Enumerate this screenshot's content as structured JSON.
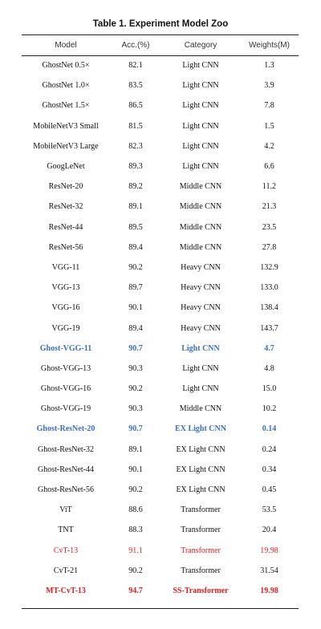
{
  "title": "Table 1. Experiment Model Zoo",
  "headers": [
    "Model",
    "Acc.(%)",
    "Category",
    "Weights(M)"
  ],
  "rows": [
    {
      "model": "GhostNet 0.5×",
      "acc": "82.1",
      "category": "Light CNN",
      "weights": "1.3",
      "style": ""
    },
    {
      "model": "GhostNet 1.0×",
      "acc": "83.5",
      "category": "Light CNN",
      "weights": "3.9",
      "style": ""
    },
    {
      "model": "GhostNet 1.5×",
      "acc": "86.5",
      "category": "Light CNN",
      "weights": "7.8",
      "style": ""
    },
    {
      "model": "MobileNetV3 Small",
      "acc": "81.5",
      "category": "Light CNN",
      "weights": "1.5",
      "style": ""
    },
    {
      "model": "MobileNetV3 Large",
      "acc": "82.3",
      "category": "Light CNN",
      "weights": "4.2",
      "style": ""
    },
    {
      "model": "GoogLeNet",
      "acc": "89.3",
      "category": "Light CNN",
      "weights": "6.6",
      "style": ""
    },
    {
      "model": "ResNet-20",
      "acc": "89.2",
      "category": "Middle CNN",
      "weights": "11.2",
      "style": ""
    },
    {
      "model": "ResNet-32",
      "acc": "89.1",
      "category": "Middle CNN",
      "weights": "21.3",
      "style": ""
    },
    {
      "model": "ResNet-44",
      "acc": "89.5",
      "category": "Middle CNN",
      "weights": "23.5",
      "style": ""
    },
    {
      "model": "ResNet-56",
      "acc": "89.4",
      "category": "Middle CNN",
      "weights": "27.8",
      "style": ""
    },
    {
      "model": "VGG-11",
      "acc": "90.2",
      "category": "Heavy CNN",
      "weights": "132.9",
      "style": ""
    },
    {
      "model": "VGG-13",
      "acc": "89.7",
      "category": "Heavy CNN",
      "weights": "133.0",
      "style": ""
    },
    {
      "model": "VGG-16",
      "acc": "90.1",
      "category": "Heavy CNN",
      "weights": "138.4",
      "style": ""
    },
    {
      "model": "VGG-19",
      "acc": "89.4",
      "category": "Heavy CNN",
      "weights": "143.7",
      "style": ""
    },
    {
      "model": "Ghost-VGG-11",
      "acc": "90.7",
      "category": "Light CNN",
      "weights": "4.7",
      "style": "hl-blue"
    },
    {
      "model": "Ghost-VGG-13",
      "acc": "90.3",
      "category": "Light CNN",
      "weights": "4.8",
      "style": ""
    },
    {
      "model": "Ghost-VGG-16",
      "acc": "90.2",
      "category": "Light CNN",
      "weights": "15.0",
      "style": ""
    },
    {
      "model": "Ghost-VGG-19",
      "acc": "90.3",
      "category": "Middle CNN",
      "weights": "10.2",
      "style": ""
    },
    {
      "model": "Ghost-ResNet-20",
      "acc": "90.7",
      "category": "EX Light CNN",
      "weights": "0.14",
      "style": "hl-blue"
    },
    {
      "model": "Ghost-ResNet-32",
      "acc": "89.1",
      "category": "EX Light CNN",
      "weights": "0.24",
      "style": ""
    },
    {
      "model": "Ghost-ResNet-44",
      "acc": "90.1",
      "category": "EX Light CNN",
      "weights": "0.34",
      "style": ""
    },
    {
      "model": "Ghost-ResNet-56",
      "acc": "90.2",
      "category": "EX Light CNN",
      "weights": "0.45",
      "style": ""
    },
    {
      "model": "ViT",
      "acc": "88.6",
      "category": "Transformer",
      "weights": "53.5",
      "style": ""
    },
    {
      "model": "TNT",
      "acc": "88.3",
      "category": "Transformer",
      "weights": "20.4",
      "style": ""
    },
    {
      "model": "CvT-13",
      "acc": "91.1",
      "category": "Transformer",
      "weights": "19.98",
      "style": "hl-red"
    },
    {
      "model": "CvT-21",
      "acc": "90.2",
      "category": "Transformer",
      "weights": "31.54",
      "style": ""
    },
    {
      "model": "MT-CvT-13",
      "acc": "94.7",
      "category": "SS-Transformer",
      "weights": "19.98",
      "style": "hl-red-bold"
    }
  ],
  "colors": {
    "highlight_blue": "#3b6fc4",
    "highlight_red": "#e02020"
  }
}
